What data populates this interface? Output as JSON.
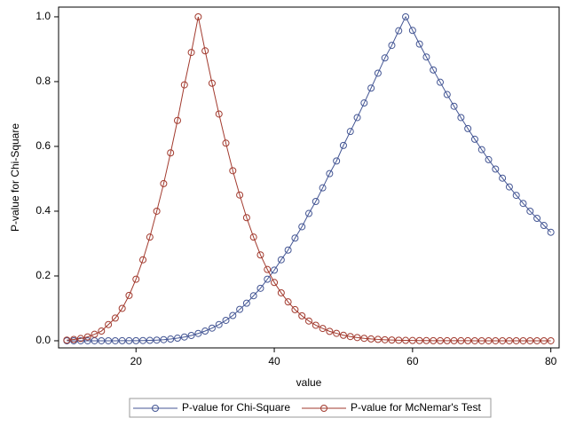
{
  "chart_data": {
    "type": "line",
    "x_label": "value",
    "y_label": "P-value for Chi-Square",
    "x": [
      10,
      11,
      12,
      13,
      14,
      15,
      16,
      17,
      18,
      19,
      20,
      21,
      22,
      23,
      24,
      25,
      26,
      27,
      28,
      29,
      30,
      31,
      32,
      33,
      34,
      35,
      36,
      37,
      38,
      39,
      40,
      41,
      42,
      43,
      44,
      45,
      46,
      47,
      48,
      49,
      50,
      51,
      52,
      53,
      54,
      55,
      56,
      57,
      58,
      59,
      60,
      61,
      62,
      63,
      64,
      65,
      66,
      67,
      68,
      69,
      70,
      71,
      72,
      73,
      74,
      75,
      76,
      77,
      78,
      79,
      80
    ],
    "series": [
      {
        "name": "P-value for Chi-Square",
        "color": "#445694",
        "values": [
          0,
          0,
          0,
          0,
          0,
          0,
          1e-05,
          3e-05,
          0.0001,
          0.0002,
          0.0003,
          0.0007,
          0.0012,
          0.0021,
          0.0034,
          0.0053,
          0.008,
          0.0117,
          0.0164,
          0.0226,
          0.03,
          0.039,
          0.05,
          0.063,
          0.078,
          0.097,
          0.116,
          0.139,
          0.162,
          0.19,
          0.218,
          0.25,
          0.28,
          0.317,
          0.352,
          0.393,
          0.43,
          0.472,
          0.516,
          0.555,
          0.603,
          0.646,
          0.689,
          0.734,
          0.78,
          0.826,
          0.873,
          0.912,
          0.957,
          1.0,
          0.958,
          0.916,
          0.876,
          0.836,
          0.798,
          0.76,
          0.724,
          0.689,
          0.655,
          0.622,
          0.59,
          0.559,
          0.53,
          0.502,
          0.475,
          0.449,
          0.424,
          0.4,
          0.378,
          0.356,
          0.335
        ]
      },
      {
        "name": "P-value for McNemar's Test",
        "color": "#a23a2e",
        "values": [
          0.002,
          0.004,
          0.007,
          0.012,
          0.02,
          0.03,
          0.05,
          0.07,
          0.1,
          0.14,
          0.19,
          0.25,
          0.32,
          0.4,
          0.485,
          0.58,
          0.68,
          0.79,
          0.89,
          1.0,
          0.895,
          0.795,
          0.7,
          0.61,
          0.525,
          0.45,
          0.38,
          0.32,
          0.265,
          0.22,
          0.18,
          0.148,
          0.12,
          0.096,
          0.077,
          0.061,
          0.048,
          0.038,
          0.029,
          0.023,
          0.017,
          0.013,
          0.01,
          0.0075,
          0.0056,
          0.0042,
          0.0031,
          0.0023,
          0.0017,
          0.0012,
          0.0009,
          0.0006,
          0.0005,
          0.0003,
          0.0002,
          0.0002,
          0.0001,
          0.0001,
          0.0001,
          0,
          0,
          0,
          0,
          0,
          0,
          0,
          0,
          0,
          0,
          0,
          0
        ]
      }
    ],
    "xlim": [
      8.8,
      81.2
    ],
    "ylim": [
      -0.022,
      1.03
    ],
    "xticks": [
      20,
      40,
      60,
      80
    ],
    "yticks": [
      {
        "value": 0,
        "label": "0.0"
      },
      0.2,
      0.4,
      0.6,
      0.8,
      {
        "value": 1,
        "label": "1.0"
      }
    ],
    "grid": false,
    "legend": "bottom"
  }
}
